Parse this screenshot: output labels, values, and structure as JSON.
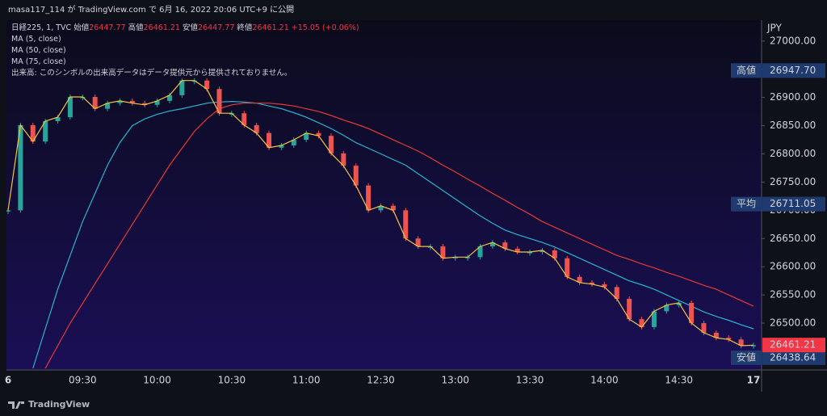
{
  "header": {
    "publisher": "masa117_114 が TradingView.com で 6月 16, 2022 20:06 UTC+9 に公開"
  },
  "chart_data": {
    "type": "candlestick",
    "symbol": "日経225, 1, TVC",
    "ohlc": [
      {
        "label": "始値",
        "value": 26447.77
      },
      {
        "label": "高値",
        "value": 26461.21
      },
      {
        "label": "安値",
        "value": 26447.77
      },
      {
        "label": "終値",
        "value": 26461.21
      }
    ],
    "change": "+15.05 (+0.06%)",
    "notice": "出来高: このシンボルの出来高データはデータ提供元から提供されておりません。",
    "currency": "JPY",
    "categories": [
      "6",
      null,
      null,
      null,
      null,
      null,
      "09:30",
      null,
      null,
      null,
      null,
      null,
      "10:00",
      null,
      null,
      null,
      null,
      null,
      "10:30",
      null,
      null,
      null,
      null,
      null,
      "11:00",
      null,
      null,
      null,
      null,
      null,
      "12:30",
      null,
      null,
      null,
      null,
      null,
      "13:00",
      null,
      null,
      null,
      null,
      null,
      "13:30",
      null,
      null,
      null,
      null,
      null,
      "14:00",
      null,
      null,
      null,
      null,
      null,
      "14:30",
      null,
      null,
      null,
      null,
      null,
      "17"
    ],
    "values": [
      26700,
      26851,
      26822,
      26858,
      26865,
      26901,
      26901,
      26880,
      26890,
      26894,
      26890,
      26887,
      26894,
      26904,
      26930,
      26930,
      26915,
      26872,
      26872,
      26851,
      26837,
      26811,
      26815,
      26825,
      26837,
      26832,
      26801,
      26779,
      26744,
      26700,
      26708,
      26700,
      26650,
      26636,
      26636,
      26615,
      26617,
      26617,
      26636,
      26643,
      26632,
      26626,
      26626,
      26629,
      26615,
      26582,
      26572,
      26569,
      26564,
      26543,
      26507,
      26493,
      26521,
      26532,
      26536,
      26500,
      26483,
      26474,
      26471,
      26460,
      26461
    ],
    "up_color": "#26a69a",
    "down_color": "#ef5350",
    "series": [
      {
        "name": "MA (5, close)",
        "color": "#f5c242",
        "values": [
          26700,
          26851,
          26822,
          26858,
          26865,
          26901,
          26901,
          26880,
          26890,
          26894,
          26890,
          26887,
          26894,
          26904,
          26930,
          26930,
          26915,
          26872,
          26872,
          26851,
          26837,
          26811,
          26815,
          26825,
          26837,
          26832,
          26801,
          26779,
          26744,
          26700,
          26708,
          26700,
          26650,
          26636,
          26636,
          26615,
          26617,
          26617,
          26636,
          26643,
          26632,
          26626,
          26626,
          26629,
          26615,
          26582,
          26572,
          26569,
          26564,
          26543,
          26507,
          26493,
          26521,
          26532,
          26536,
          26500,
          26483,
          26474,
          26471,
          26460,
          26461
        ]
      },
      {
        "name": "MA (50, close)",
        "color": "#26b5d0",
        "values": [
          null,
          null,
          26420,
          26490,
          26560,
          26620,
          26680,
          26730,
          26780,
          26820,
          26850,
          26862,
          26870,
          26876,
          26880,
          26885,
          26890,
          26892,
          26893,
          26892,
          26890,
          26885,
          26880,
          26873,
          26865,
          26855,
          26845,
          26833,
          26820,
          26810,
          26800,
          26790,
          26780,
          26765,
          26750,
          26735,
          26720,
          26705,
          26690,
          26677,
          26665,
          26657,
          26650,
          26643,
          26635,
          26625,
          26615,
          26605,
          26595,
          26585,
          26575,
          26568,
          26560,
          26550,
          26540,
          26530,
          26520,
          26512,
          26505,
          26497,
          26490
        ]
      },
      {
        "name": "MA (75, close)",
        "color": "#e53935",
        "values": [
          null,
          null,
          null,
          26420,
          26460,
          26500,
          26535,
          26570,
          26605,
          26640,
          26675,
          26710,
          26745,
          26780,
          26810,
          26840,
          26862,
          26880,
          26887,
          26890,
          26890,
          26890,
          26888,
          26885,
          26880,
          26875,
          26868,
          26860,
          26853,
          26845,
          26835,
          26825,
          26815,
          26805,
          26793,
          26780,
          26768,
          26755,
          26743,
          26730,
          26718,
          26705,
          26693,
          26680,
          26670,
          26660,
          26650,
          26640,
          26630,
          26620,
          26613,
          26605,
          26598,
          26590,
          26583,
          26575,
          26567,
          26560,
          26550,
          26540,
          26530
        ]
      }
    ],
    "ylim": [
      26417,
      27037
    ],
    "yticks": [
      {
        "value": 26500,
        "label": "26500.00"
      },
      {
        "value": 26550,
        "label": "26550.00"
      },
      {
        "value": 26600,
        "label": "26600.00"
      },
      {
        "value": 26650,
        "label": "26650.00"
      },
      {
        "value": 26700,
        "label": "26700.00"
      },
      {
        "value": 26750,
        "label": "26750.00"
      },
      {
        "value": 26800,
        "label": "26800.00"
      },
      {
        "value": 26850,
        "label": "26850.00"
      },
      {
        "value": 26900,
        "label": "26900.00"
      },
      {
        "value": 26950,
        "label": "26950.00"
      },
      {
        "value": 27000,
        "label": "27000.00"
      }
    ],
    "price_labels": [
      {
        "name": "高値",
        "value": {
          "value": 26947.7,
          "label": "26947.70"
        }
      },
      {
        "name": "平均",
        "value": 26711.05
      },
      {
        "name": "安値",
        "value": 26438.64
      }
    ],
    "last_price": 26461.21,
    "last_price_color": "#f23645"
  },
  "footer": {
    "brand": "TradingView"
  }
}
